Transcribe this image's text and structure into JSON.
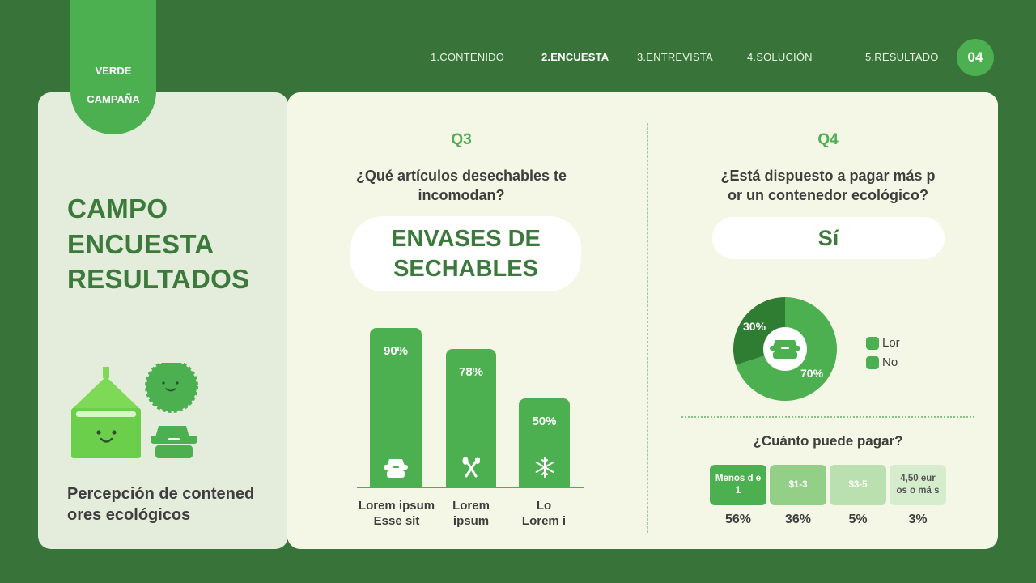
{
  "brand": {
    "line1": "VERDE",
    "line2": "CAMPAÑA"
  },
  "nav": {
    "items": [
      "1.CONTENIDO",
      "2.ENCUESTA",
      "3.ENTREVISTA",
      "4.SOLUCIÓN",
      "5.RESULTADO"
    ],
    "active": "2.ENCUESTA",
    "page_number": "04"
  },
  "left": {
    "title_lines": [
      "CAMPO",
      "ENCUESTA",
      "RESULTADOS"
    ],
    "footer_lines": [
      "Percepción de contened",
      "ores ecológicos"
    ]
  },
  "q3": {
    "label": "Q3",
    "question_lines": [
      "¿Qué artículos desechables te",
      "incomodan?"
    ],
    "answer_lines": [
      "ENVASES DE",
      "SECHABLES"
    ]
  },
  "q4": {
    "label": "Q4",
    "question_lines": [
      "¿Está dispuesto a pagar más p",
      "or un contenedor ecológico?"
    ],
    "answer": "Sí",
    "legend": [
      "Lor",
      "No"
    ],
    "pay_title": "¿Cuánto puede pagar?",
    "pay_options": [
      {
        "label": "Menos d e 1",
        "pct": "56%"
      },
      {
        "label": "$1-3",
        "pct": "36%"
      },
      {
        "label": "$3-5",
        "pct": "5%"
      },
      {
        "label": "4,50 eur os o má s",
        "pct": "3%"
      }
    ]
  },
  "colors": {
    "background": "#38743a",
    "accent": "#4caf50",
    "accent_dark": "#3c7a3b",
    "donut_dark": "#2e7d32"
  },
  "chart_data": [
    {
      "type": "bar",
      "categories": [
        "Lorem ipsum Esse sit",
        "Lorem ipsum",
        "Lo Lorem i"
      ],
      "values": [
        90,
        78,
        50
      ],
      "value_labels": [
        "90%",
        "78%",
        "50%"
      ],
      "icons": [
        "takeout-box-icon",
        "utensils-icon",
        "snowflake-icon"
      ],
      "ylim": [
        0,
        100
      ]
    },
    {
      "type": "pie",
      "labels": [
        "Lor",
        "No"
      ],
      "values": [
        70,
        30
      ],
      "value_labels": [
        "70%",
        "30%"
      ],
      "center_icon": "takeout-box-icon"
    },
    {
      "type": "table",
      "categories": [
        "Menos d e 1",
        "$1-3",
        "$3-5",
        "4,50 eur os o má s"
      ],
      "values": [
        56,
        36,
        5,
        3
      ]
    }
  ]
}
